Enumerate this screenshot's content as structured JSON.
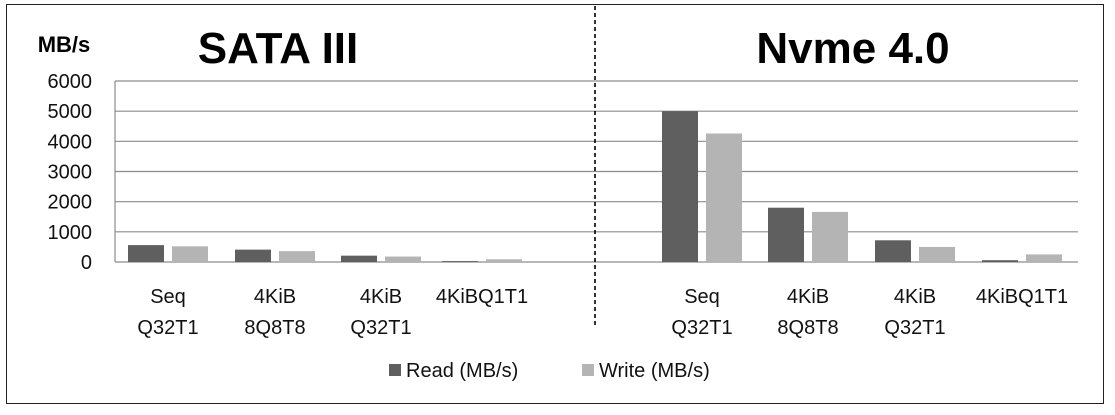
{
  "chart_data": {
    "type": "bar",
    "ylabel": "MB/s",
    "ylim": [
      0,
      6000
    ],
    "yticks": [
      0,
      1000,
      2000,
      3000,
      4000,
      5000,
      6000
    ],
    "grid": true,
    "legend_position": "bottom",
    "categories": [
      [
        "Seq",
        "Q32T1"
      ],
      [
        "4KiB",
        "8Q8T8"
      ],
      [
        "4KiB",
        "Q32T1"
      ],
      [
        "4KiBQ1T1"
      ],
      [
        "Seq",
        "Q32T1"
      ],
      [
        "4KiB",
        "8Q8T8"
      ],
      [
        "4KiB",
        "Q32T1"
      ],
      [
        "4KiBQ1T1"
      ]
    ],
    "groups": [
      {
        "title": "SATA III",
        "category_indices": [
          0,
          1,
          2,
          3
        ]
      },
      {
        "title": "Nvme 4.0",
        "category_indices": [
          4,
          5,
          6,
          7
        ]
      }
    ],
    "series": [
      {
        "name": "Read (MB/s)",
        "color": "#5f5f5f",
        "values": [
          560,
          410,
          210,
          30,
          5000,
          1800,
          720,
          60
        ]
      },
      {
        "name": "Write (MB/s)",
        "color": "#b4b4b4",
        "values": [
          520,
          360,
          180,
          90,
          4260,
          1660,
          500,
          250
        ]
      }
    ]
  }
}
